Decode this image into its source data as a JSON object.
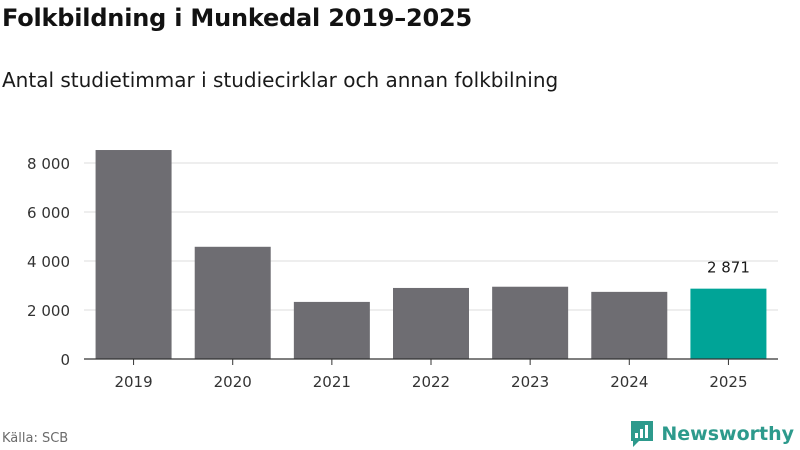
{
  "header": {
    "title": "Folkbildning i Munkedal 2019–2025",
    "subtitle": "Antal studietimmar i studiecirklar och annan folkbilning"
  },
  "footer": {
    "source": "Källa: SCB",
    "brand": "Newsworthy"
  },
  "colors": {
    "bar": "#6e6d72",
    "highlight": "#00a497",
    "grid": "#dddddd",
    "axis": "#333333",
    "brand": "#2d9a8c"
  },
  "chart_data": {
    "type": "bar",
    "title": "Folkbildning i Munkedal 2019–2025",
    "subtitle": "Antal studietimmar i studiecirklar och annan folkbilning",
    "xlabel": "",
    "ylabel": "",
    "categories": [
      "2019",
      "2020",
      "2021",
      "2022",
      "2023",
      "2024",
      "2025"
    ],
    "values": [
      8530,
      4580,
      2330,
      2900,
      2950,
      2740,
      2871
    ],
    "highlight_index": 6,
    "data_labels": [
      {
        "index": 6,
        "text": "2 871"
      }
    ],
    "ylim": [
      0,
      8800
    ],
    "yticks": [
      0,
      2000,
      4000,
      6000,
      8000
    ],
    "ytick_labels": [
      "0",
      "2 000",
      "4 000",
      "6 000",
      "8 000"
    ],
    "grid": true,
    "legend": "none"
  }
}
